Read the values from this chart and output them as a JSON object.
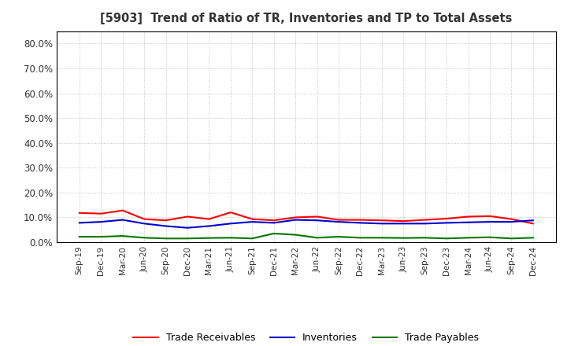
{
  "title": "[5903]  Trend of Ratio of TR, Inventories and TP to Total Assets",
  "x_labels": [
    "Sep-19",
    "Dec-19",
    "Mar-20",
    "Jun-20",
    "Sep-20",
    "Dec-20",
    "Mar-21",
    "Jun-21",
    "Sep-21",
    "Dec-21",
    "Mar-22",
    "Jun-22",
    "Sep-22",
    "Dec-22",
    "Mar-23",
    "Jun-23",
    "Sep-23",
    "Dec-23",
    "Mar-24",
    "Jun-24",
    "Sep-24",
    "Dec-24"
  ],
  "trade_receivables": [
    0.118,
    0.115,
    0.128,
    0.093,
    0.088,
    0.103,
    0.093,
    0.12,
    0.093,
    0.088,
    0.1,
    0.103,
    0.09,
    0.09,
    0.088,
    0.085,
    0.09,
    0.095,
    0.103,
    0.105,
    0.093,
    0.075
  ],
  "inventories": [
    0.078,
    0.082,
    0.09,
    0.075,
    0.065,
    0.058,
    0.065,
    0.075,
    0.082,
    0.078,
    0.09,
    0.088,
    0.082,
    0.078,
    0.075,
    0.075,
    0.075,
    0.078,
    0.08,
    0.082,
    0.082,
    0.088
  ],
  "trade_payables": [
    0.022,
    0.022,
    0.025,
    0.018,
    0.015,
    0.015,
    0.017,
    0.018,
    0.015,
    0.035,
    0.03,
    0.018,
    0.022,
    0.018,
    0.018,
    0.017,
    0.018,
    0.015,
    0.018,
    0.02,
    0.015,
    0.018
  ],
  "colors": {
    "trade_receivables": "#ff0000",
    "inventories": "#0000cc",
    "trade_payables": "#007700"
  },
  "ylim": [
    0.0,
    0.85
  ],
  "yticks": [
    0.0,
    0.1,
    0.2,
    0.3,
    0.4,
    0.5,
    0.6,
    0.7,
    0.8
  ],
  "background_color": "#ffffff",
  "grid_color": "#999999",
  "title_color": "#333333"
}
